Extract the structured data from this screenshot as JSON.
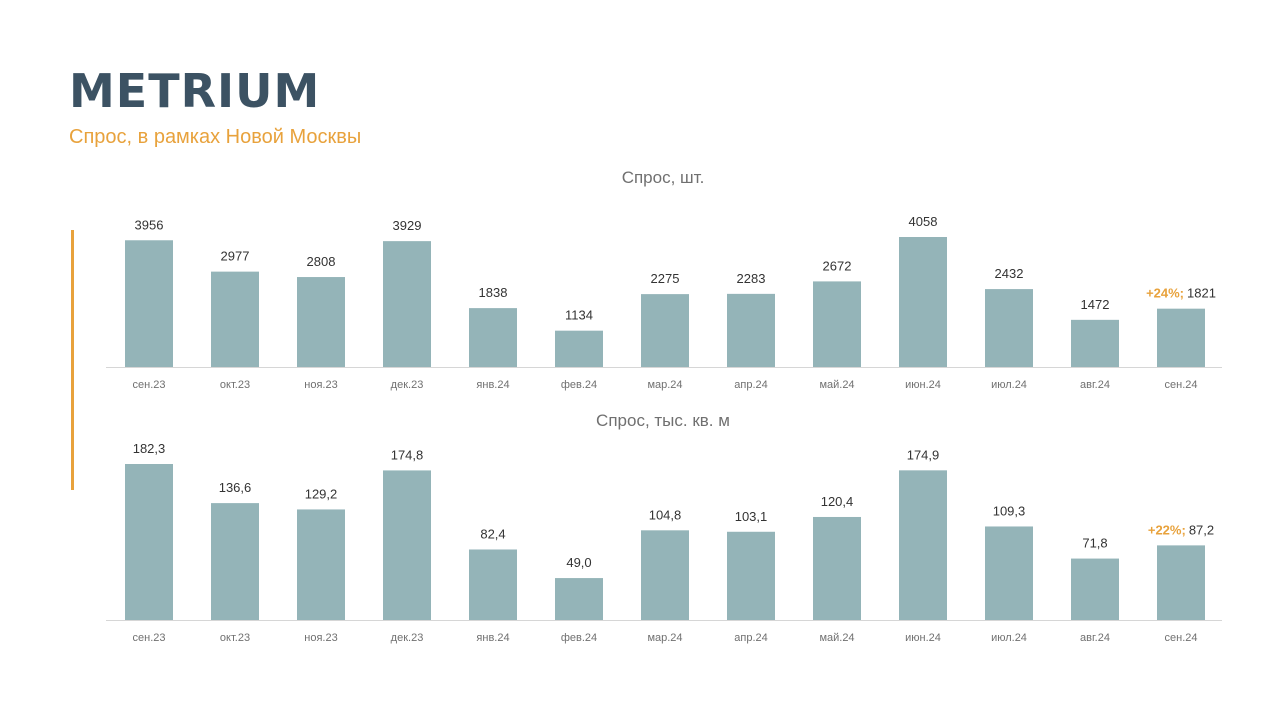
{
  "header": {
    "logo": "METRIUM",
    "subtitle": "Спрос, в рамках Новой Москвы"
  },
  "colors": {
    "bar": "#94b4b8",
    "accent": "#e8a23c",
    "logo": "#3c5263"
  },
  "chart_data": [
    {
      "type": "bar",
      "title": "Спрос, шт.",
      "categories": [
        "сен.23",
        "окт.23",
        "ноя.23",
        "дек.23",
        "янв.24",
        "фев.24",
        "мар.24",
        "апр.24",
        "май.24",
        "июн.24",
        "июл.24",
        "авг.24",
        "сен.24"
      ],
      "values": [
        3956,
        2977,
        2808,
        3929,
        1838,
        1134,
        2275,
        2283,
        2672,
        4058,
        2432,
        1472,
        1821
      ],
      "labels": [
        "3956",
        "2977",
        "2808",
        "3929",
        "1838",
        "1134",
        "2275",
        "2283",
        "2672",
        "4058",
        "2432",
        "1472",
        "1821"
      ],
      "highlight": {
        "index": 12,
        "text": "+24%;"
      },
      "ylim": [
        0,
        4058
      ],
      "grid": false
    },
    {
      "type": "bar",
      "title": "Спрос, тыс. кв. м",
      "categories": [
        "сен.23",
        "окт.23",
        "ноя.23",
        "дек.23",
        "янв.24",
        "фев.24",
        "мар.24",
        "апр.24",
        "май.24",
        "июн.24",
        "июл.24",
        "авг.24",
        "сен.24"
      ],
      "values": [
        182.3,
        136.6,
        129.2,
        174.8,
        82.4,
        49.0,
        104.8,
        103.1,
        120.4,
        174.9,
        109.3,
        71.8,
        87.2
      ],
      "labels": [
        "182,3",
        "136,6",
        "129,2",
        "174,8",
        "82,4",
        "49,0",
        "104,8",
        "103,1",
        "120,4",
        "174,9",
        "109,3",
        "71,8",
        "87,2"
      ],
      "highlight": {
        "index": 12,
        "text": "+22%;"
      },
      "ylim": [
        0,
        182.3
      ],
      "grid": false
    }
  ]
}
